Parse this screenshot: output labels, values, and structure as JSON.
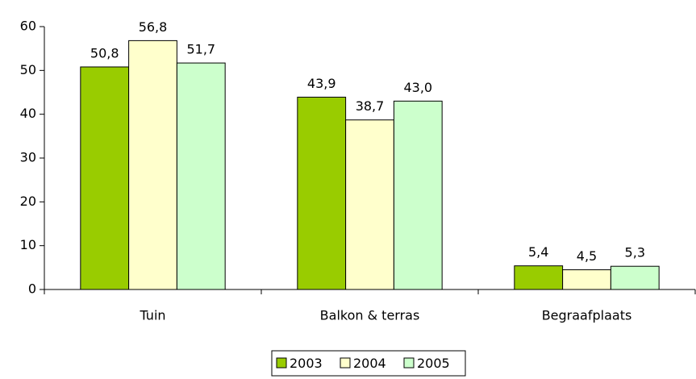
{
  "chart_data": {
    "type": "bar",
    "categories": [
      "Tuin",
      "Balkon & terras",
      "Begraafplaats"
    ],
    "series": [
      {
        "name": "2003",
        "color": "#99cc00",
        "values": [
          50.8,
          43.9,
          5.4
        ],
        "value_labels": [
          "50,8",
          "43,9",
          "5,4"
        ]
      },
      {
        "name": "2004",
        "color": "#ffffcc",
        "values": [
          56.8,
          38.7,
          4.5
        ],
        "value_labels": [
          "56,8",
          "38,7",
          "4,5"
        ]
      },
      {
        "name": "2005",
        "color": "#ccffcc",
        "values": [
          51.7,
          43.0,
          5.3
        ],
        "value_labels": [
          "51,7",
          "43,0",
          "5,3"
        ]
      }
    ],
    "ylim": [
      0,
      60
    ],
    "yticks": [
      0,
      10,
      20,
      30,
      40,
      50,
      60
    ],
    "grid": false,
    "legend": "bottom"
  }
}
